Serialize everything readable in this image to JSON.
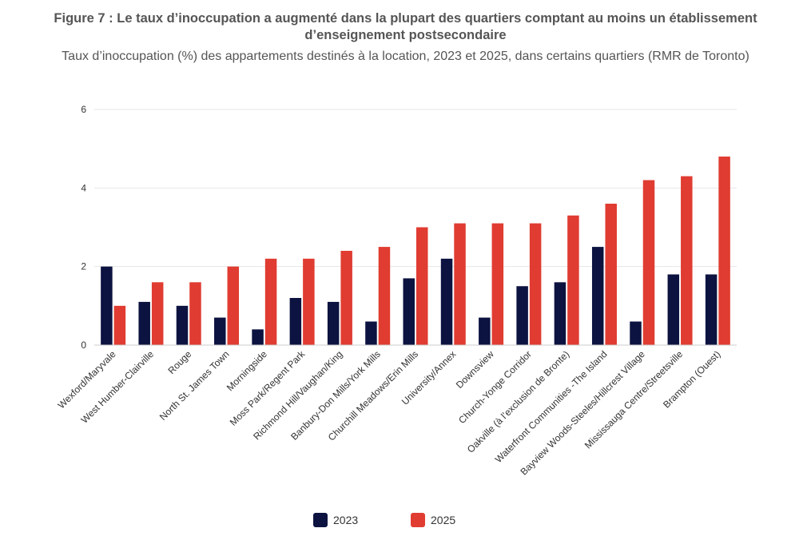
{
  "title": "Figure 7 : Le taux d’inoccupation a augmenté dans la plupart des quartiers comptant au moins un établissement d’enseignement postsecondaire",
  "subtitle": "Taux d’inoccupation (%) des appartements destinés à la location, 2023 et 2025, dans certains quartiers (RMR de Toronto)",
  "chart_data": {
    "type": "bar",
    "categories": [
      "Wexford/Maryvale",
      "West Humber-Clairville",
      "Rouge",
      "North St. James Town",
      "Morningside",
      "Moss Park/Regent Park",
      "Richmond Hill/Vaughan/King",
      "Banbury-Don Mills/York Mills",
      "Churchill Meadows/Erin Mills",
      "University/Annex",
      "Downsview",
      "Church-Yonge Corridor",
      "Oakville (à l’exclusion de Bronte)",
      "Waterfront Communities -The Island",
      "Bayview Woods-Steeles/Hillcrest Village",
      "Mississauga Centre/Streetsville",
      "Brampton (Ouest)"
    ],
    "series": [
      {
        "name": "2023",
        "color": "#0d1340",
        "values": [
          2.0,
          1.1,
          1.0,
          0.7,
          0.4,
          1.2,
          1.1,
          0.6,
          1.7,
          2.2,
          0.7,
          1.5,
          1.6,
          2.5,
          0.6,
          1.8,
          1.8
        ]
      },
      {
        "name": "2025",
        "color": "#e03c31",
        "values": [
          1.0,
          1.6,
          1.6,
          2.0,
          2.2,
          2.2,
          2.4,
          2.5,
          3.0,
          3.1,
          3.1,
          3.1,
          3.3,
          3.6,
          4.2,
          4.3,
          4.8
        ]
      }
    ],
    "ylim": [
      0,
      6
    ],
    "yticks": [
      "0",
      "2",
      "4",
      "6"
    ],
    "grid": true,
    "legend_position": "bottom-center"
  }
}
